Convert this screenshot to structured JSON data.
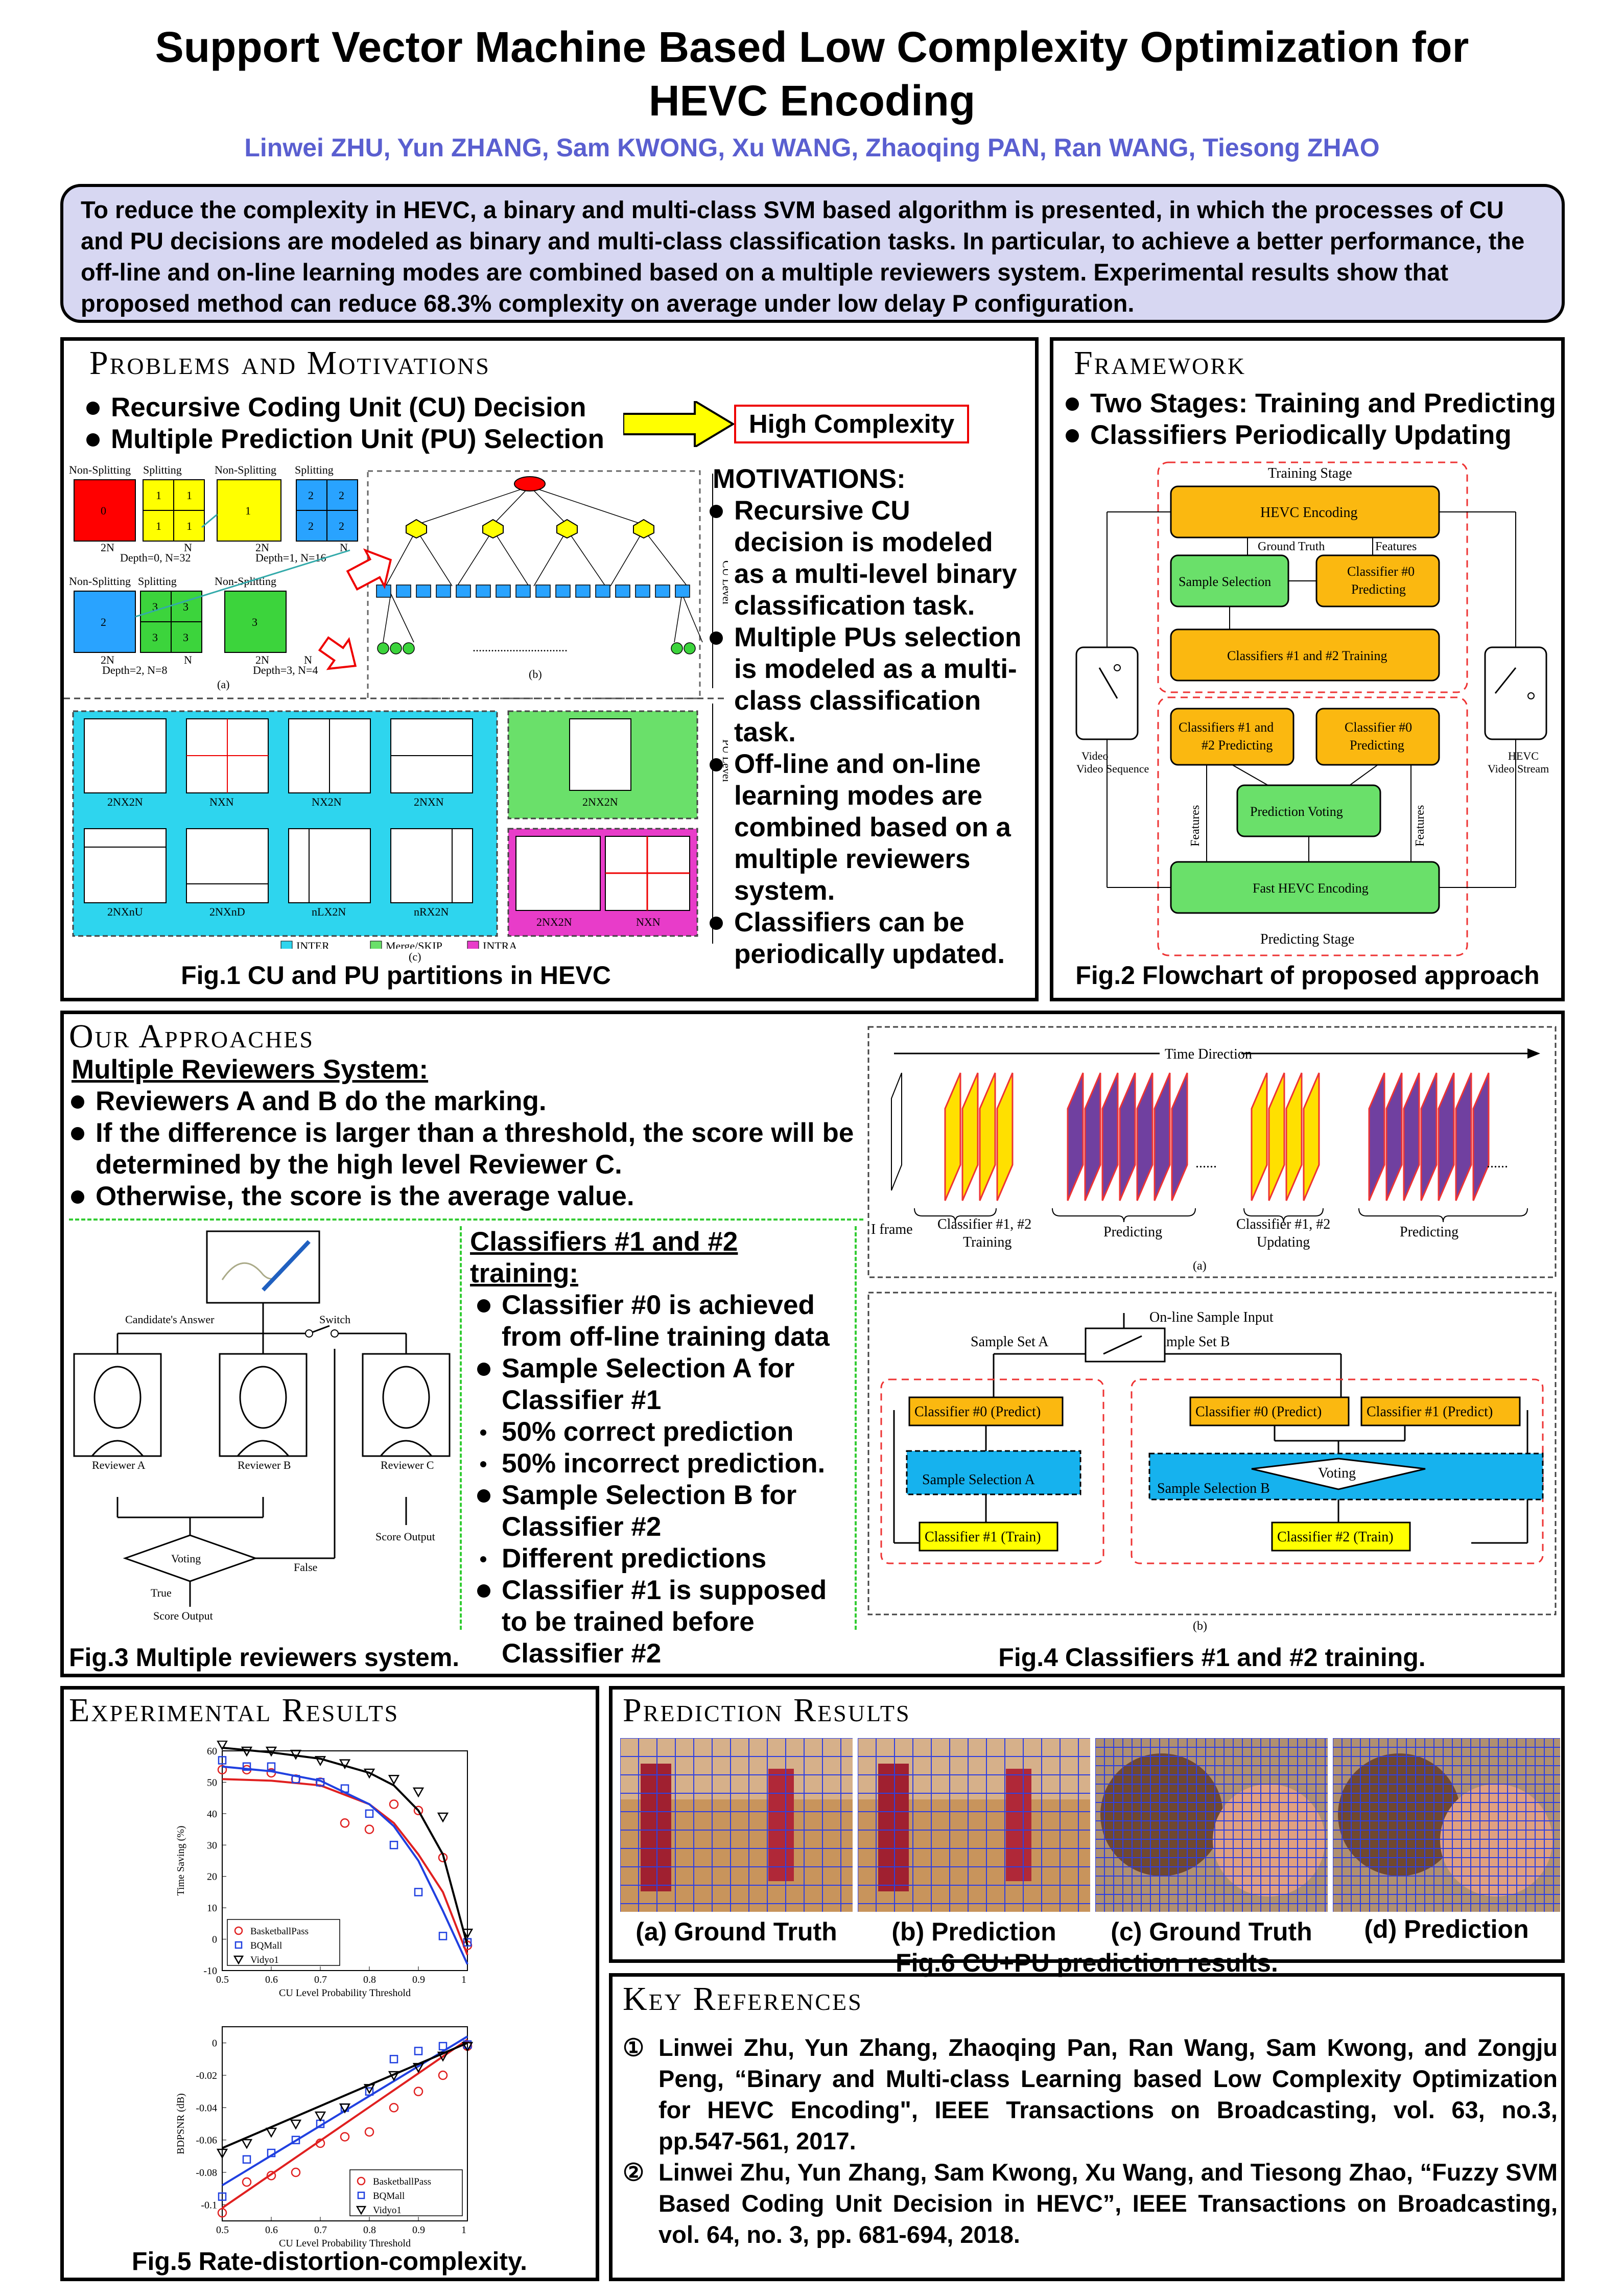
{
  "title_line1": "Support Vector Machine Based Low Complexity Optimization for",
  "title_line2": "HEVC Encoding",
  "authors": "Linwei ZHU, Yun ZHANG, Sam KWONG, Xu WANG, Zhaoqing PAN, Ran WANG, Tiesong ZHAO",
  "abstract": "To reduce the complexity in HEVC, a binary and multi-class SVM based algorithm is presented, in which the processes of CU and PU decisions are modeled as binary and multi-class classification tasks. In particular, to achieve a better performance, the off-line and on-line learning modes are combined based on a multiple reviewers system. Experimental results show that proposed method can reduce 68.3% complexity on average under low delay P configuration.",
  "problems": {
    "title": "Problems and Motivations",
    "bullets": [
      "Recursive Coding Unit (CU) Decision",
      "Multiple Prediction Unit (PU) Selection"
    ],
    "high_complexity": "High Complexity",
    "motivations_title": "MOTIVATIONS:",
    "motivations": [
      "Recursive CU decision is modeled as a multi-level binary classification task.",
      "Multiple PUs selection is modeled as a multi-class classification task.",
      "Off-line and on-line learning modes are combined based on a multiple reviewers system.",
      "Classifiers can be periodically updated."
    ],
    "fig_caption": "Fig.1 CU and PU partitions in HEVC",
    "fig": {
      "non_split": "Non-Splitting",
      "split": "Splitting",
      "d0": "Depth=0, N=32",
      "d1": "Depth=1, N=16",
      "d2": "Depth=2, N=8",
      "d3": "Depth=3, N=4",
      "twoN": "2N",
      "N": "N",
      "a": "(a)",
      "b": "(b)",
      "c": "(c)",
      "cu_level": "CU Level",
      "pu_level": "PU Level",
      "inter": [
        "2NX2N",
        "NXN",
        "NX2N",
        "2NXN",
        "2NXnU",
        "2NXnD",
        "nLX2N",
        "nRX2N"
      ],
      "merge": "2NX2N",
      "intra": [
        "2NX2N",
        "NXN"
      ],
      "legend": [
        "INTER",
        "Merge/SKIP",
        "INTRA"
      ],
      "labels0": "0",
      "labels1": "1",
      "labels2": "2",
      "labels3": "3"
    }
  },
  "framework": {
    "title": "Framework",
    "bullets": [
      "Two Stages: Training and Predicting",
      "Classifiers Periodically  Updating"
    ],
    "fig_caption": "Fig.2 Flowchart of proposed approach",
    "training_stage": "Training Stage",
    "hevc_encoding": "HEVC Encoding",
    "ground_truth": "Ground Truth",
    "features": "Features",
    "sample_selection": "Sample Selection",
    "c0_predicting": "Classifier #0 Predicting",
    "c12_training": "Classifiers #1 and #2 Training",
    "c12_predicting": "Classifiers #1 and #2 Predicting",
    "c0_predicting2": "Classifier #0 Predicting",
    "prediction_voting": "Prediction Voting",
    "fast_hevc": "Fast HEVC Encoding",
    "predicting_stage": "Predicting Stage",
    "video_sequence": "Video Sequence",
    "hevc_stream": "HEVC Video Stream"
  },
  "approaches": {
    "title": "Our Approaches",
    "subtitle": "Multiple Reviewers System:",
    "bullets": [
      "Reviewers A and B do the marking.",
      "If the difference is larger than a threshold, the score will be determined by the high level Reviewer C.",
      "Otherwise, the score is the average value."
    ],
    "training_title": "Classifiers #1 and #2 training:",
    "training_items": [
      {
        "t": "Classifier #0 is achieved from off-line training data",
        "s": "big"
      },
      {
        "t": "Sample Selection A for Classifier #1",
        "s": "big"
      },
      {
        "t": "50% correct prediction",
        "s": "sm"
      },
      {
        "t": "50% incorrect prediction.",
        "s": "sm"
      },
      {
        "t": "Sample Selection B for Classifier #2",
        "s": "big"
      },
      {
        "t": "Different predictions",
        "s": "sm"
      },
      {
        "t": "Classifier #1 is supposed to be trained before Classifier #2",
        "s": "big"
      }
    ],
    "fig3_caption": "Fig.3 Multiple reviewers system.",
    "fig3": {
      "candidate": "Candidate's Answer",
      "switch": "Switch",
      "ra": "Reviewer A",
      "rb": "Reviewer B",
      "rc": "Reviewer C",
      "voting": "Voting",
      "true_l": "True",
      "false_l": "False",
      "score_output": "Score Output"
    },
    "fig4_caption": "Fig.4 Classifiers #1 and #2 training.",
    "fig4": {
      "time_direction": "Time Direction",
      "iframe": "I frame",
      "c12_training": "Classifier #1, #2",
      "training": "Training",
      "predicting": "Predicting",
      "updating": "Updating",
      "dots": "......",
      "a": "(a)",
      "b": "(b)",
      "online_input": "On-line Sample Input",
      "set_a": "Sample Set A",
      "set_b": "Sample Set B",
      "c0_predict": "Classifier #0 (Predict)",
      "c1_predict": "Classifier #1 (Predict)",
      "ss_a": "Sample Selection A",
      "ss_b": "Sample Selection B",
      "c1_train": "Classifier #1 (Train)",
      "c2_train": "Classifier #2 (Train)",
      "voting": "Voting"
    }
  },
  "experimental": {
    "title": "Experimental Results",
    "fig5_caption": "Fig.5 Rate-distortion-complexity."
  },
  "prediction": {
    "title": "Prediction Results",
    "labels": [
      "(a) Ground Truth",
      "(b) Prediction",
      "(c) Ground Truth",
      "(d) Prediction"
    ],
    "fig6_caption": "Fig.6 CU+PU prediction results."
  },
  "references": {
    "title": "Key References",
    "items": [
      {
        "num": "①",
        "text": "Linwei Zhu, Yun Zhang, Zhaoqing Pan, Ran Wang, Sam Kwong, and Zongju Peng, “Binary and Multi-class Learning based Low Complexity Optimization for HEVC Encoding\", IEEE Transactions on  Broadcasting, vol. 63, no.3, pp.547-561, 2017."
      },
      {
        "num": "②",
        "text": "Linwei Zhu, Yun Zhang, Sam Kwong, Xu Wang, and Tiesong Zhao, “Fuzzy SVM Based Coding Unit Decision in HEVC”, IEEE Transactions on Broadcasting, vol. 64, no. 3, pp. 681-694, 2018."
      }
    ]
  },
  "chart_data": [
    {
      "type": "scatter",
      "title": "",
      "xlabel": "CU Level Probability Threshold",
      "ylabel": "Time Saving (%)",
      "xlim": [
        0.5,
        1
      ],
      "ylim": [
        -10,
        60
      ],
      "xticks": [
        "0.5",
        "0.6",
        "0.7",
        "0.8",
        "0.9",
        "1"
      ],
      "yticks": [
        "60",
        "50",
        "40",
        "30",
        "20",
        "10",
        "0",
        "-10"
      ],
      "legend_position": "bottom-left",
      "series": [
        {
          "name": "BasketballPass",
          "marker": "circle",
          "color": "#e02020",
          "x": [
            0.5,
            0.55,
            0.6,
            0.65,
            0.7,
            0.75,
            0.8,
            0.85,
            0.9,
            0.95,
            1
          ],
          "y": [
            54,
            54,
            53,
            51,
            50,
            37,
            35,
            43,
            41,
            26,
            -2
          ],
          "fit": [
            [
              0.5,
              51
            ],
            [
              0.6,
              50.5
            ],
            [
              0.7,
              49
            ],
            [
              0.8,
              43
            ],
            [
              0.85,
              37
            ],
            [
              0.9,
              27
            ],
            [
              0.95,
              15
            ],
            [
              1,
              -5
            ]
          ]
        },
        {
          "name": "BQMall",
          "marker": "square",
          "color": "#2040e0",
          "x": [
            0.5,
            0.55,
            0.6,
            0.65,
            0.7,
            0.75,
            0.8,
            0.85,
            0.9,
            0.95,
            1
          ],
          "y": [
            57,
            55,
            55,
            51,
            50,
            48,
            40,
            30,
            15,
            1,
            -1
          ],
          "fit": [
            [
              0.5,
              55
            ],
            [
              0.6,
              53.5
            ],
            [
              0.7,
              50.5
            ],
            [
              0.8,
              43
            ],
            [
              0.85,
              36
            ],
            [
              0.9,
              25
            ],
            [
              0.95,
              9
            ],
            [
              1,
              -8
            ]
          ]
        },
        {
          "name": "Vidyo1",
          "marker": "triangle",
          "color": "#000000",
          "x": [
            0.5,
            0.55,
            0.6,
            0.65,
            0.7,
            0.75,
            0.8,
            0.85,
            0.9,
            0.95,
            1
          ],
          "y": [
            62,
            60,
            60,
            59,
            57,
            56,
            53,
            51,
            47,
            39,
            2
          ],
          "fit": [
            [
              0.5,
              61
            ],
            [
              0.6,
              59.5
            ],
            [
              0.7,
              57.5
            ],
            [
              0.8,
              53
            ],
            [
              0.85,
              49
            ],
            [
              0.9,
              41
            ],
            [
              0.95,
              27
            ],
            [
              1,
              -2
            ]
          ]
        }
      ]
    },
    {
      "type": "scatter",
      "title": "",
      "xlabel": "CU Level Probability Threshold",
      "ylabel": "BDPSNR (dB)",
      "xlim": [
        0.5,
        1
      ],
      "ylim": [
        -0.11,
        0.01
      ],
      "xticks": [
        "0.5",
        "0.6",
        "0.7",
        "0.8",
        "0.9",
        "1"
      ],
      "yticks": [
        "0",
        "-0.02",
        "-0.04",
        "-0.06",
        "-0.08",
        "-0.1"
      ],
      "legend_position": "bottom-right",
      "series": [
        {
          "name": "BasketballPass",
          "marker": "circle",
          "color": "#e02020",
          "x": [
            0.5,
            0.55,
            0.6,
            0.65,
            0.7,
            0.75,
            0.8,
            0.85,
            0.9,
            0.95,
            1
          ],
          "y": [
            -0.105,
            -0.086,
            -0.082,
            -0.08,
            -0.062,
            -0.058,
            -0.055,
            -0.04,
            -0.03,
            -0.02,
            -0.002
          ],
          "fit": [
            [
              0.5,
              -0.102
            ],
            [
              1,
              0.002
            ]
          ]
        },
        {
          "name": "BQMall",
          "marker": "square",
          "color": "#2040e0",
          "x": [
            0.5,
            0.55,
            0.6,
            0.65,
            0.7,
            0.75,
            0.8,
            0.85,
            0.9,
            0.95,
            1
          ],
          "y": [
            -0.095,
            -0.072,
            -0.068,
            -0.06,
            -0.05,
            -0.04,
            -0.03,
            -0.01,
            -0.005,
            -0.002,
            -0.001
          ],
          "fit": [
            [
              0.5,
              -0.088
            ],
            [
              1,
              0.004
            ]
          ]
        },
        {
          "name": "Vidyo1",
          "marker": "triangle",
          "color": "#000000",
          "x": [
            0.5,
            0.55,
            0.6,
            0.65,
            0.7,
            0.75,
            0.8,
            0.85,
            0.9,
            0.95,
            1
          ],
          "y": [
            -0.068,
            -0.062,
            -0.055,
            -0.05,
            -0.045,
            -0.04,
            -0.028,
            -0.02,
            -0.015,
            -0.008,
            -0.002
          ],
          "fit": [
            [
              0.5,
              -0.065
            ],
            [
              1,
              0
            ]
          ]
        }
      ]
    }
  ]
}
